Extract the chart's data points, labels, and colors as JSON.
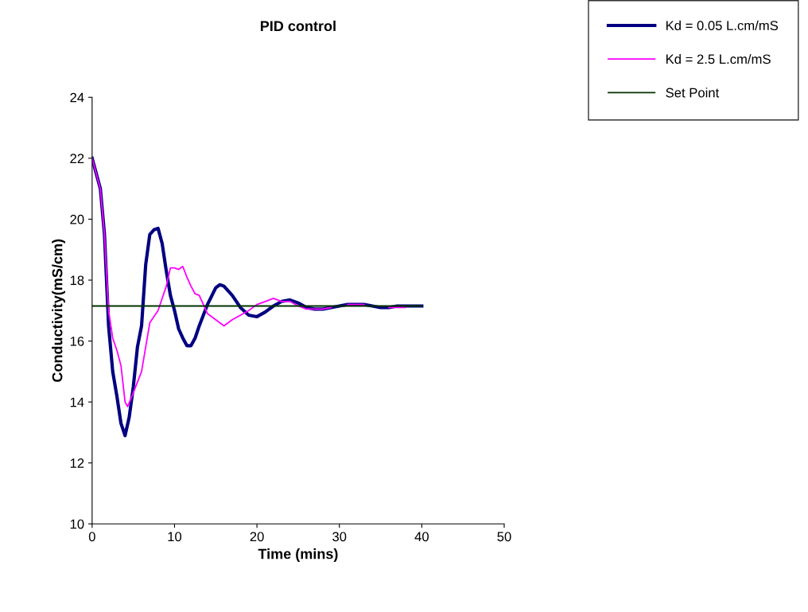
{
  "chart_data": {
    "type": "line",
    "title": "PID control",
    "xlabel": "Time (mins)",
    "ylabel": "Conductivity(mS/cm)",
    "xlim": [
      0,
      50
    ],
    "xticks": [
      0,
      10,
      20,
      30,
      40,
      50
    ],
    "ylim": [
      10,
      24
    ],
    "yticks": [
      10,
      12,
      14,
      16,
      18,
      20,
      22,
      24
    ],
    "grid": false,
    "legend": "top right",
    "marker": "none",
    "line_style": "solid",
    "series": [
      {
        "name": "Kd = 0.05 L.cm/mS",
        "color": "#000080",
        "x": [
          0,
          1,
          1.5,
          2,
          2.5,
          3,
          3.5,
          4,
          4.5,
          5,
          5.5,
          6,
          6.5,
          7,
          7.5,
          8,
          8.5,
          9,
          9.5,
          10,
          10.5,
          11,
          11.5,
          12,
          12.5,
          13,
          14,
          15,
          15.5,
          16,
          17,
          18,
          19,
          20,
          21,
          22,
          23,
          24,
          25,
          26,
          27,
          28,
          29,
          30,
          31,
          32,
          33,
          34,
          35,
          36,
          37,
          38,
          40
        ],
        "values": [
          22,
          21,
          19.5,
          16.5,
          15,
          14.2,
          13.3,
          12.9,
          13.5,
          14.5,
          15.8,
          16.5,
          18.5,
          19.5,
          19.65,
          19.7,
          19.2,
          18.3,
          17.5,
          17,
          16.4,
          16.1,
          15.85,
          15.85,
          16.1,
          16.5,
          17.2,
          17.75,
          17.85,
          17.8,
          17.5,
          17.1,
          16.85,
          16.8,
          16.95,
          17.15,
          17.3,
          17.35,
          17.25,
          17.1,
          17.05,
          17.05,
          17.1,
          17.15,
          17.2,
          17.2,
          17.2,
          17.15,
          17.1,
          17.1,
          17.15,
          17.15,
          17.15
        ]
      },
      {
        "name": "Kd = 2.5 L.cm/mS",
        "color": "#ff00ff",
        "x": [
          0,
          1,
          1.5,
          2,
          2.5,
          3,
          3.5,
          4,
          4.3,
          5,
          6,
          6.5,
          7,
          8,
          9,
          9.5,
          10,
          10.5,
          11,
          11.5,
          12,
          12.5,
          13,
          14,
          15,
          16,
          17,
          18,
          19,
          20,
          21,
          22,
          23,
          24,
          25,
          26,
          27,
          28,
          29,
          30,
          31,
          32,
          33,
          34,
          35,
          36,
          38
        ],
        "values": [
          22,
          21,
          19.5,
          17,
          16.1,
          15.7,
          15.2,
          14,
          13.85,
          14.3,
          15,
          15.8,
          16.6,
          17,
          17.8,
          18.4,
          18.4,
          18.35,
          18.45,
          18.1,
          17.8,
          17.55,
          17.5,
          16.9,
          16.7,
          16.5,
          16.7,
          16.85,
          17,
          17.2,
          17.3,
          17.4,
          17.3,
          17.3,
          17.15,
          17.05,
          17.05,
          17.05,
          17.1,
          null,
          17.2,
          17.2,
          17.2,
          null,
          null,
          17.1,
          17.1
        ]
      },
      {
        "name": "Set Point",
        "color": "#003300",
        "x": [
          0,
          40
        ],
        "values": [
          17.15,
          17.15
        ]
      }
    ]
  }
}
